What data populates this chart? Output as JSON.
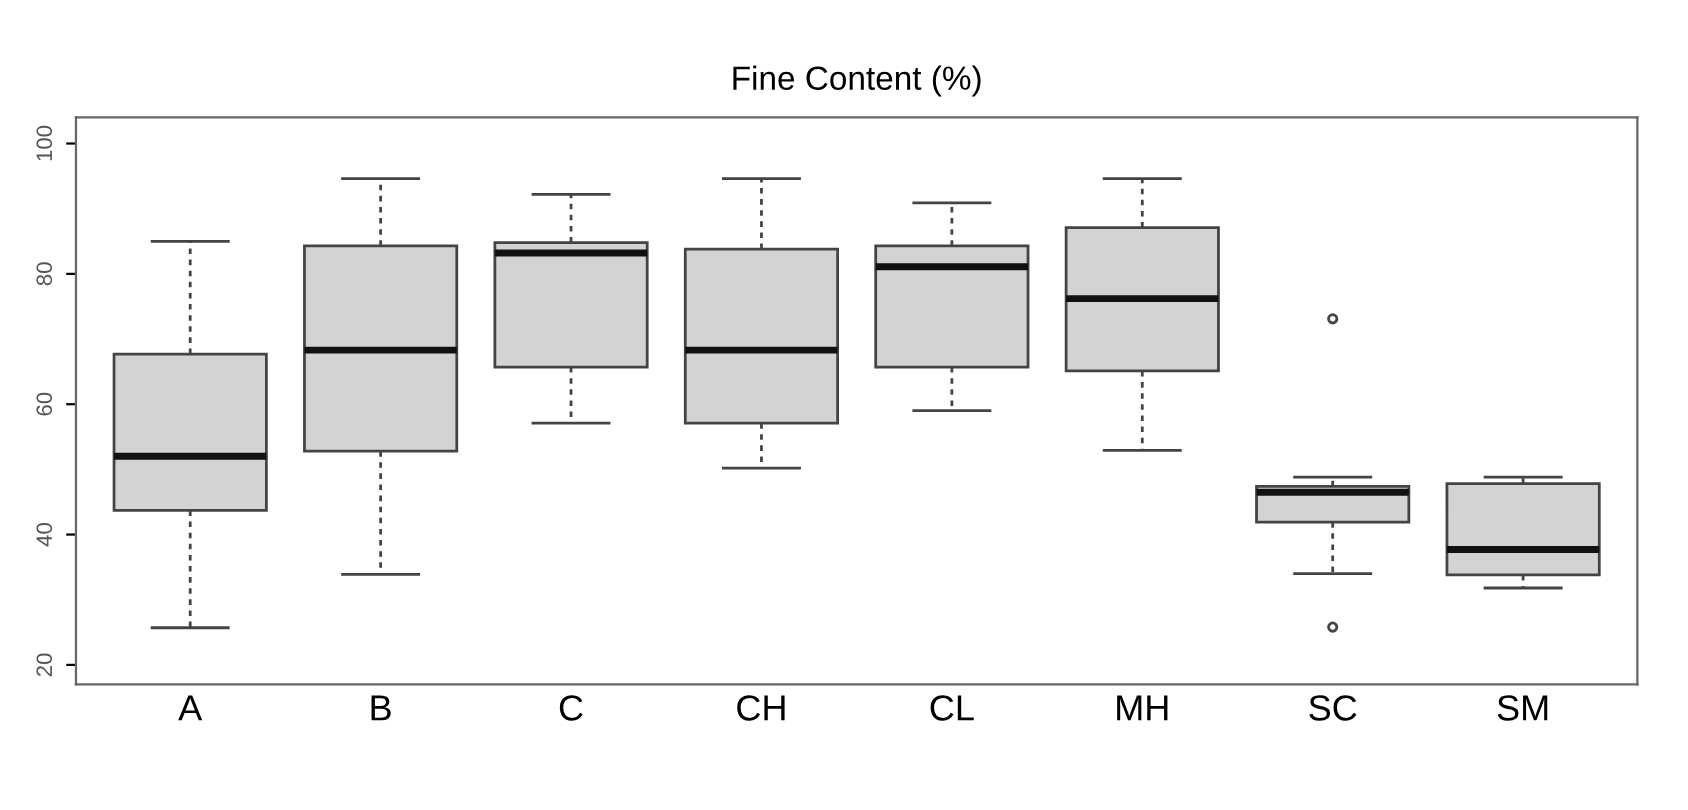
{
  "chart_data": {
    "type": "box",
    "title": "Fine Content (%)",
    "categories": [
      "A",
      "B",
      "C",
      "CH",
      "CL",
      "MH",
      "SC",
      "SM"
    ],
    "boxes": [
      {
        "low": 25.7,
        "q1": 43.7,
        "median": 52.0,
        "q3": 67.7,
        "high": 85.0
      },
      {
        "low": 33.9,
        "q1": 52.8,
        "median": 68.3,
        "q3": 84.3,
        "high": 94.6
      },
      {
        "low": 57.1,
        "q1": 65.7,
        "median": 83.2,
        "q3": 84.8,
        "high": 92.2
      },
      {
        "low": 50.2,
        "q1": 57.1,
        "median": 68.3,
        "q3": 83.8,
        "high": 94.6
      },
      {
        "low": 59.0,
        "q1": 65.7,
        "median": 81.1,
        "q3": 84.3,
        "high": 90.9
      },
      {
        "low": 52.9,
        "q1": 65.1,
        "median": 76.2,
        "q3": 87.1,
        "high": 94.6
      },
      {
        "low": 34.0,
        "q1": 41.9,
        "median": 46.5,
        "q3": 47.4,
        "high": 48.8,
        "outliers": [
          73.1,
          25.8
        ]
      },
      {
        "low": 31.8,
        "q1": 33.8,
        "median": 37.7,
        "q3": 47.8,
        "high": 48.8
      }
    ],
    "color": "#d3d3d3",
    "ylim": [
      17,
      104
    ],
    "yticks": [
      20,
      40,
      60,
      80,
      100
    ],
    "grid": false,
    "legend": false
  }
}
